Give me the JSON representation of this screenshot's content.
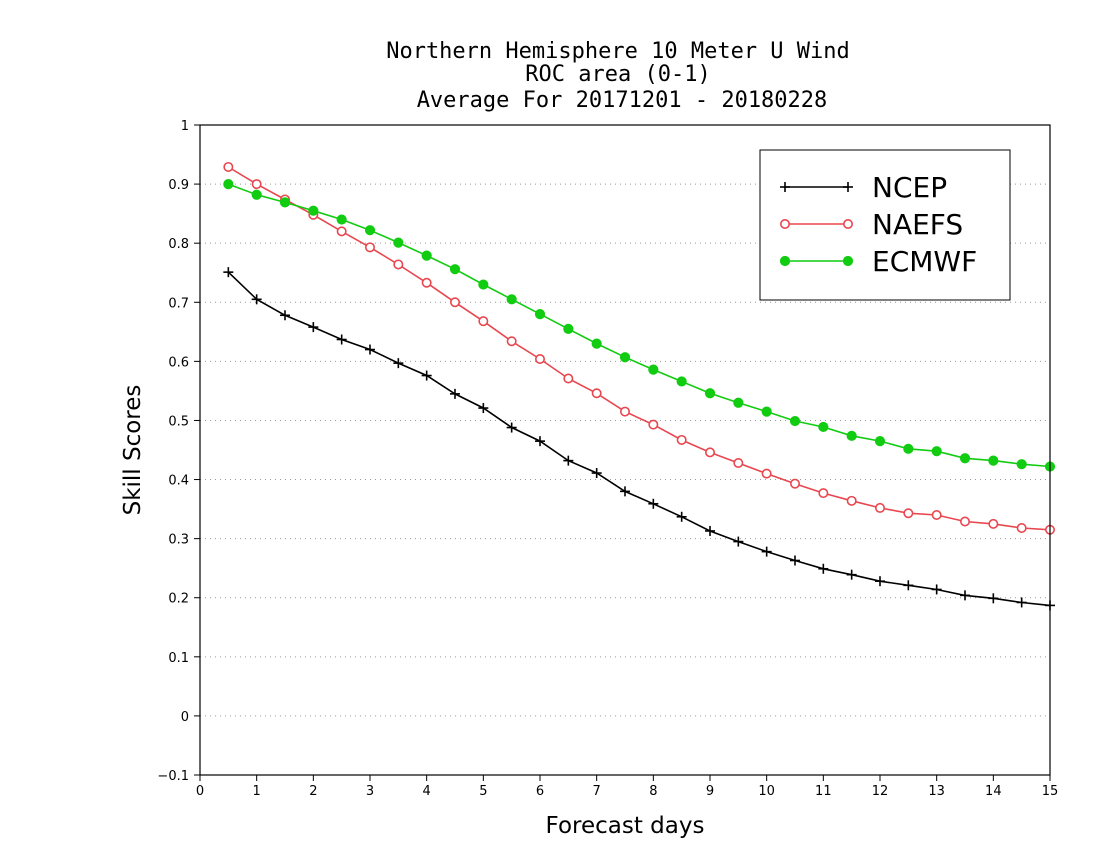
{
  "chart_data": {
    "type": "line",
    "title": [
      "Northern Hemisphere 10 Meter U Wind",
      "ROC area (0-1)",
      "Average For 20171201 - 20180228"
    ],
    "xlabel": "Forecast days",
    "ylabel": "Skill Scores",
    "xlim": [
      0,
      15
    ],
    "ylim": [
      -0.1,
      1
    ],
    "xticks": [
      "0",
      "1",
      "2",
      "3",
      "4",
      "5",
      "6",
      "7",
      "8",
      "9",
      "10",
      "11",
      "12",
      "13",
      "14",
      "15"
    ],
    "yticks": [
      "−0.1",
      "0",
      "0.1",
      "0.2",
      "0.3",
      "0.4",
      "0.5",
      "0.6",
      "0.7",
      "0.8",
      "0.9",
      "1"
    ],
    "grid": "horizontal dotted",
    "legend_position": "top-right",
    "x": [
      0.5,
      1,
      1.5,
      2,
      2.5,
      3,
      3.5,
      4,
      4.5,
      5,
      5.5,
      6,
      6.5,
      7,
      7.5,
      8,
      8.5,
      9,
      9.5,
      10,
      10.5,
      11,
      11.5,
      12,
      12.5,
      13,
      13.5,
      14,
      14.5,
      15
    ],
    "series": [
      {
        "name": "NCEP",
        "color": "#000000",
        "marker": "plus",
        "values": [
          0.751,
          0.705,
          0.678,
          0.658,
          0.637,
          0.62,
          0.597,
          0.576,
          0.545,
          0.521,
          0.488,
          0.465,
          0.432,
          0.411,
          0.38,
          0.359,
          0.337,
          0.313,
          0.295,
          0.278,
          0.263,
          0.249,
          0.239,
          0.228,
          0.221,
          0.214,
          0.204,
          0.199,
          0.192,
          0.187
        ]
      },
      {
        "name": "NAEFS",
        "color": "#e8474f",
        "marker": "open-circle",
        "values": [
          0.929,
          0.9,
          0.874,
          0.848,
          0.82,
          0.793,
          0.764,
          0.733,
          0.7,
          0.668,
          0.634,
          0.604,
          0.571,
          0.546,
          0.515,
          0.493,
          0.467,
          0.446,
          0.428,
          0.41,
          0.393,
          0.377,
          0.364,
          0.352,
          0.343,
          0.34,
          0.329,
          0.325,
          0.318,
          0.315
        ]
      },
      {
        "name": "ECMWF",
        "color": "#11cc11",
        "marker": "filled-circle",
        "values": [
          0.9,
          0.882,
          0.869,
          0.855,
          0.84,
          0.822,
          0.801,
          0.779,
          0.756,
          0.73,
          0.705,
          0.68,
          0.655,
          0.63,
          0.607,
          0.586,
          0.566,
          0.546,
          0.53,
          0.515,
          0.499,
          0.489,
          0.474,
          0.465,
          0.452,
          0.448,
          0.436,
          0.432,
          0.426,
          0.422
        ]
      }
    ]
  }
}
